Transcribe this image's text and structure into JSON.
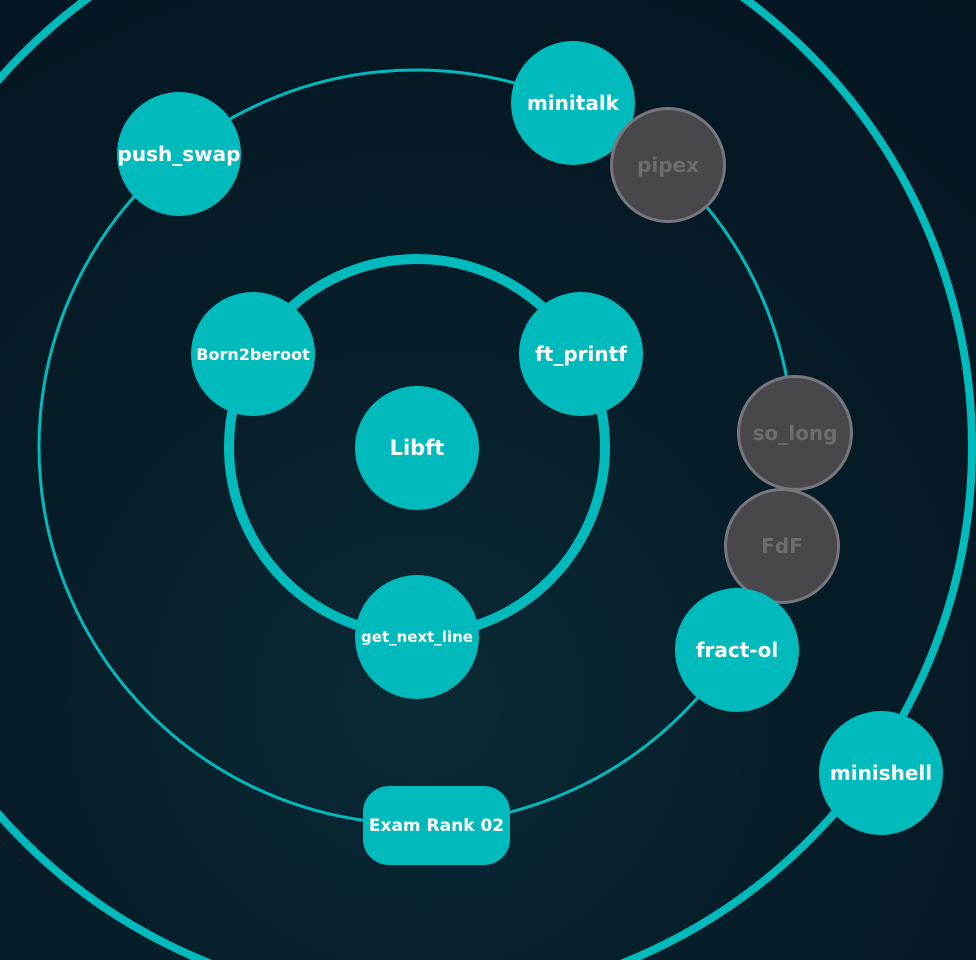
{
  "colors": {
    "accent": "#00babc",
    "locked_fill": "#48484c",
    "locked_border": "#76767c",
    "locked_text": "#6c6c72",
    "background": "#041520"
  },
  "nodes": {
    "libft": {
      "label": "Libft",
      "state": "validated"
    },
    "born2beroot": {
      "label": "Born2beroot",
      "state": "validated"
    },
    "ft_printf": {
      "label": "ft_printf",
      "state": "validated"
    },
    "get_next_line": {
      "label": "get_next_line",
      "state": "validated"
    },
    "push_swap": {
      "label": "push_swap",
      "state": "validated"
    },
    "minitalk": {
      "label": "minitalk",
      "state": "validated"
    },
    "pipex": {
      "label": "pipex",
      "state": "locked"
    },
    "so_long": {
      "label": "so_long",
      "state": "locked"
    },
    "fdf": {
      "label": "FdF",
      "state": "locked"
    },
    "fract_ol": {
      "label": "fract-ol",
      "state": "validated"
    },
    "exam_rank_02": {
      "label": "Exam Rank 02",
      "state": "validated"
    },
    "minishell": {
      "label": "minishell",
      "state": "validated"
    }
  }
}
